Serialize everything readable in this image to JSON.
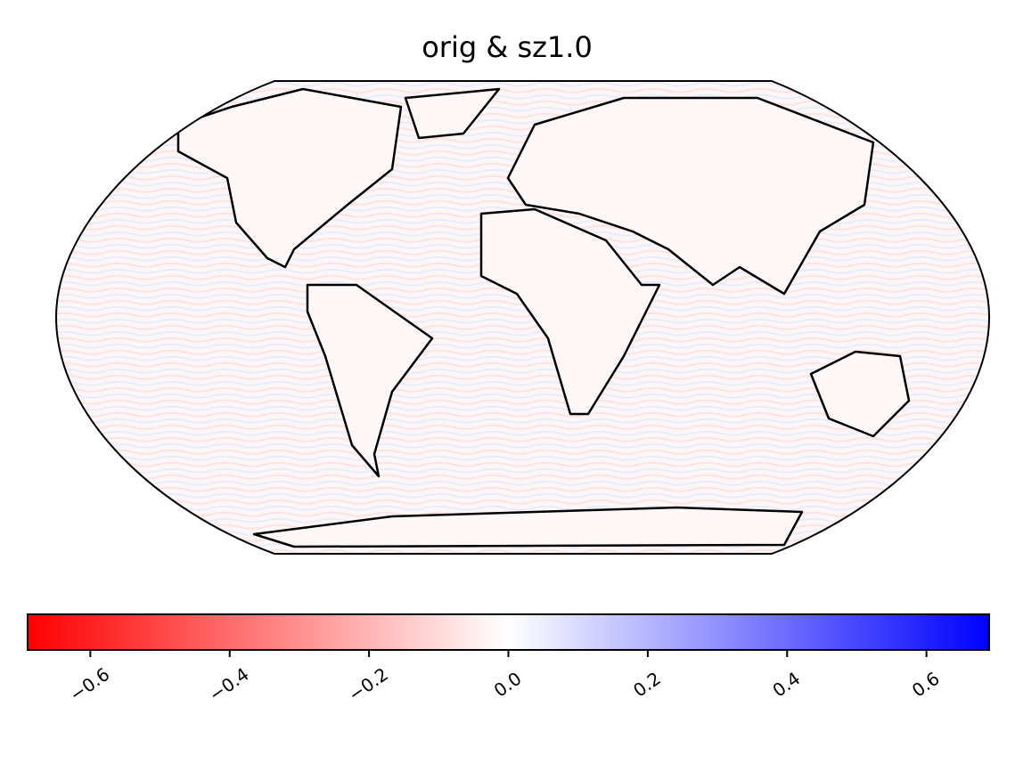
{
  "chart_data": {
    "type": "map",
    "title": "orig & sz1.0",
    "colormap": [
      "#ff0000",
      "#ffffff",
      "#0000ff"
    ],
    "xlim": [
      -0.69,
      0.69
    ],
    "xticks": [
      {
        "value": -0.6,
        "label": "−0.6"
      },
      {
        "value": -0.4,
        "label": "−0.4"
      },
      {
        "value": -0.2,
        "label": "−0.2"
      },
      {
        "value": 0,
        "label": "0.0"
      },
      0.2,
      0.4,
      0.6
    ]
  }
}
